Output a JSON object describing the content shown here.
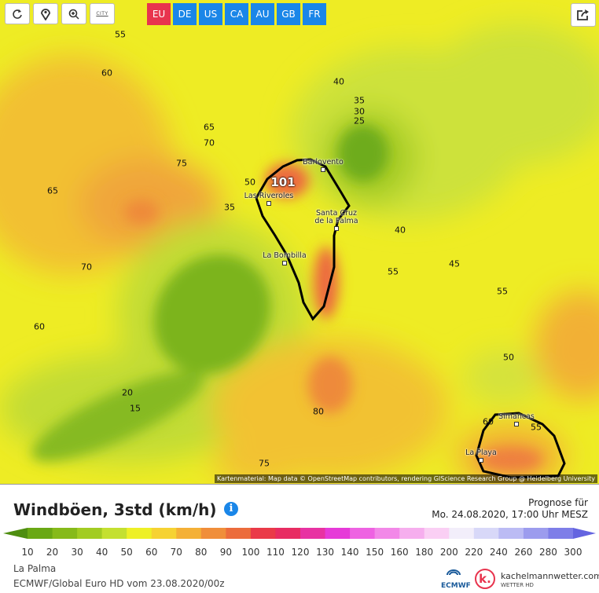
{
  "toolbar": {
    "city_button": "CITY",
    "regions": [
      "EU",
      "DE",
      "US",
      "CA",
      "AU",
      "GB",
      "FR"
    ]
  },
  "map": {
    "contour_labels": [
      55,
      60,
      65,
      70,
      75,
      65,
      50,
      35,
      70,
      60,
      20,
      15,
      80,
      75,
      40,
      35,
      30,
      25,
      40,
      55,
      45,
      55,
      50,
      60,
      55
    ],
    "max_value": 101,
    "places": [
      "Barlovento",
      "Las Riveroles",
      "Santa Cruz de la Palma",
      "La Bombilla",
      "Simancas",
      "La Playa"
    ],
    "attribution": "Kartenmaterial: Map data © OpenStreetMap contributors, rendering GIScience Research Group @ Heidelberg University"
  },
  "legend": {
    "title": "Windböen, 3std (km/h)",
    "forecast_label": "Prognose für",
    "forecast_time": "Mo. 24.08.2020, 17:00 Uhr MESZ",
    "scale": [
      {
        "value": 10,
        "color": "#6aa814"
      },
      {
        "value": 20,
        "color": "#86ba1a"
      },
      {
        "value": 30,
        "color": "#a2cc22"
      },
      {
        "value": 40,
        "color": "#c4e030"
      },
      {
        "value": 50,
        "color": "#eef026"
      },
      {
        "value": 60,
        "color": "#f6d232"
      },
      {
        "value": 70,
        "color": "#f4b036"
      },
      {
        "value": 80,
        "color": "#f08e3a"
      },
      {
        "value": 90,
        "color": "#ec6c3c"
      },
      {
        "value": 100,
        "color": "#ea3a48"
      },
      {
        "value": 110,
        "color": "#e82c62"
      },
      {
        "value": 120,
        "color": "#e832a2"
      },
      {
        "value": 130,
        "color": "#e63ad8"
      },
      {
        "value": 140,
        "color": "#ee62e2"
      },
      {
        "value": 150,
        "color": "#f288e8"
      },
      {
        "value": 160,
        "color": "#f6aeee"
      },
      {
        "value": 180,
        "color": "#facff4"
      },
      {
        "value": 200,
        "color": "#f2eefa"
      },
      {
        "value": 220,
        "color": "#d8d8f8"
      },
      {
        "value": 240,
        "color": "#bbbbf4"
      },
      {
        "value": 260,
        "color": "#9c9cee"
      },
      {
        "value": 280,
        "color": "#7e7ee8"
      },
      {
        "value": 300,
        "color": "#6464e0"
      }
    ]
  },
  "footer": {
    "region": "La Palma",
    "model": "ECMWF/Global Euro HD vom 23.08.2020/00z"
  },
  "logos": {
    "ecmwf": "ECMWF",
    "site": "kachelmannwetter.com",
    "site_sub": "WETTER HD"
  }
}
